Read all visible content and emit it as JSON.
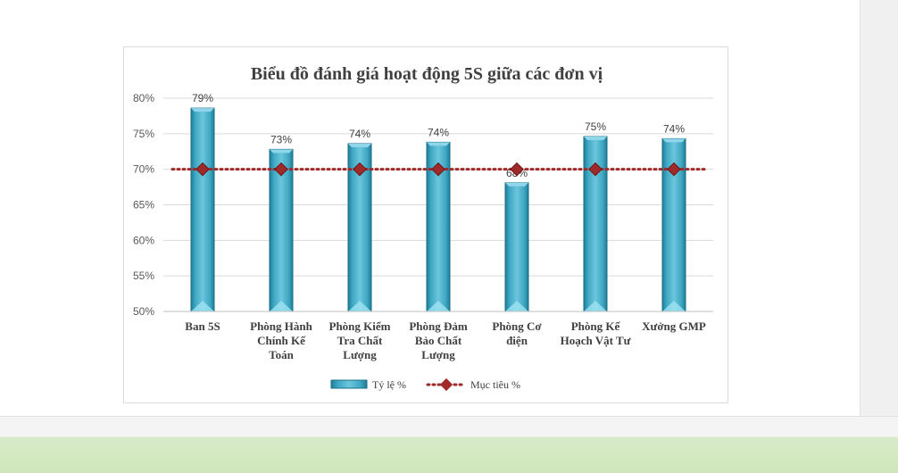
{
  "chart_data": {
    "type": "bar",
    "title": "Biểu đồ đánh giá hoạt động 5S giữa các đơn vị",
    "categories": [
      [
        "Ban 5S"
      ],
      [
        "Phòng Hành",
        "Chính Kế",
        "Toán"
      ],
      [
        "Phòng Kiểm",
        "Tra Chất",
        "Lượng"
      ],
      [
        "Phòng Đảm",
        "Bảo Chất",
        "Lượng"
      ],
      [
        "Phòng Cơ",
        "điện"
      ],
      [
        "Phòng Kế",
        "Hoạch Vật Tư"
      ],
      [
        "Xưởng GMP"
      ]
    ],
    "series": [
      {
        "name": "Tỷ lệ %",
        "type": "bar",
        "values": [
          0.786,
          0.728,
          0.736,
          0.738,
          0.681,
          0.746,
          0.743
        ],
        "labels": [
          "79%",
          "73%",
          "74%",
          "74%",
          "68%",
          "75%",
          "74%"
        ],
        "color": "#4aaec8"
      },
      {
        "name": "Mục tiêu %",
        "type": "line",
        "values": [
          0.7,
          0.7,
          0.7,
          0.7,
          0.7,
          0.7,
          0.7
        ],
        "color": "#9e2a2a"
      }
    ],
    "ylim": [
      0.5,
      0.8
    ],
    "yticks": [
      "50%",
      "55%",
      "60%",
      "65%",
      "70%",
      "75%",
      "80%"
    ],
    "grid": true,
    "legend": "bottom"
  },
  "colors": {
    "bar": "#4aaec8",
    "bar_dark": "#1d7f9a",
    "target": "#9e2a2a",
    "grid": "#d9d9d9"
  }
}
